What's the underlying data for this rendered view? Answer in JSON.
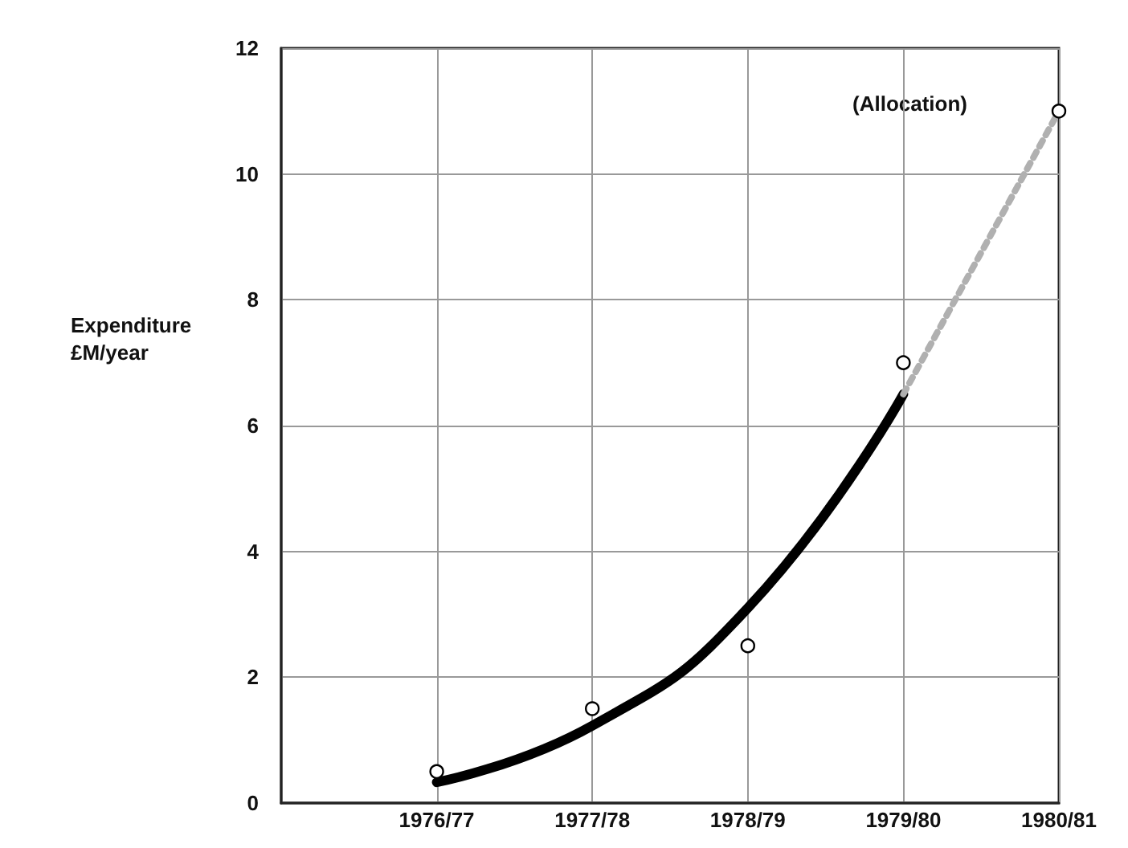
{
  "chart_data": {
    "type": "line",
    "ylabel": "Expenditure £M/year",
    "categories": [
      null,
      "1976/77",
      "1977/78",
      "1978/79",
      "1979/80",
      "1980/81"
    ],
    "ylim": [
      0,
      12
    ],
    "yticks": [
      0,
      2,
      4,
      6,
      8,
      10,
      12
    ],
    "grid": true,
    "annotations": [
      "(Allocation)"
    ],
    "series": [
      {
        "type": "scatter",
        "marker": "circle",
        "color": "#000000",
        "values": [
          null,
          0.5,
          1.5,
          2.5,
          7,
          11
        ]
      },
      {
        "marker": "none",
        "line_style": "solid",
        "color": "#000000",
        "values": [
          null,
          0.33,
          1.23,
          3.1,
          6.5,
          null
        ]
      },
      {
        "marker": "none",
        "line_style": "dotted",
        "color": "#b0b0b0",
        "values": [
          null,
          null,
          null,
          null,
          6.5,
          11
        ]
      }
    ]
  }
}
